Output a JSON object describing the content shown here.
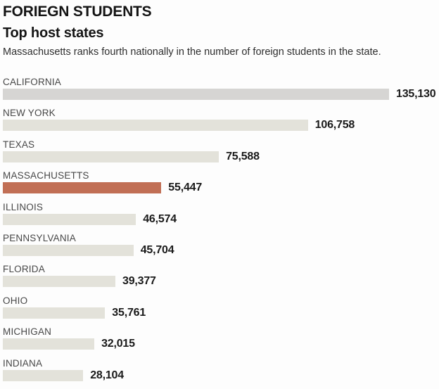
{
  "header": {
    "kicker": "FORIEGN STUDENTS",
    "title": "Top host states",
    "description": "Massachusetts ranks fourth nationally in the number of foreign students in the state."
  },
  "chart_data": {
    "type": "bar",
    "orientation": "horizontal",
    "title": "Top host states",
    "categories": [
      "CALIFORNIA",
      "NEW YORK",
      "TEXAS",
      "MASSACHUSETTS",
      "ILLINOIS",
      "PENNSYLVANIA",
      "FLORIDA",
      "OHIO",
      "MICHIGAN",
      "INDIANA"
    ],
    "values": [
      135130,
      106758,
      75588,
      55447,
      46574,
      45704,
      39377,
      35761,
      32015,
      28104
    ],
    "display_values": [
      "135,130",
      "106,758",
      "75,588",
      "55,447",
      "46,574",
      "45,704",
      "39,377",
      "35,761",
      "32,015",
      "28,104"
    ],
    "xlim": [
      0,
      135130
    ],
    "grid": false,
    "legend": false,
    "value_labels_position": "end-of-bar",
    "highlight_index": 3,
    "highlight_category": "MASSACHUSETTS",
    "colors": {
      "bar_default": "#e3e2da",
      "bar_first": "#d6d5d3",
      "bar_highlight": "#c16f55",
      "label_text": "#474747",
      "value_text": "#1a1a1a"
    },
    "bar_colors": [
      "#d6d5d3",
      "#e3e2da",
      "#e3e2da",
      "#c16f55",
      "#e3e2da",
      "#e3e2da",
      "#e3e2da",
      "#e3e2da",
      "#e3e2da",
      "#e3e2da"
    ]
  }
}
